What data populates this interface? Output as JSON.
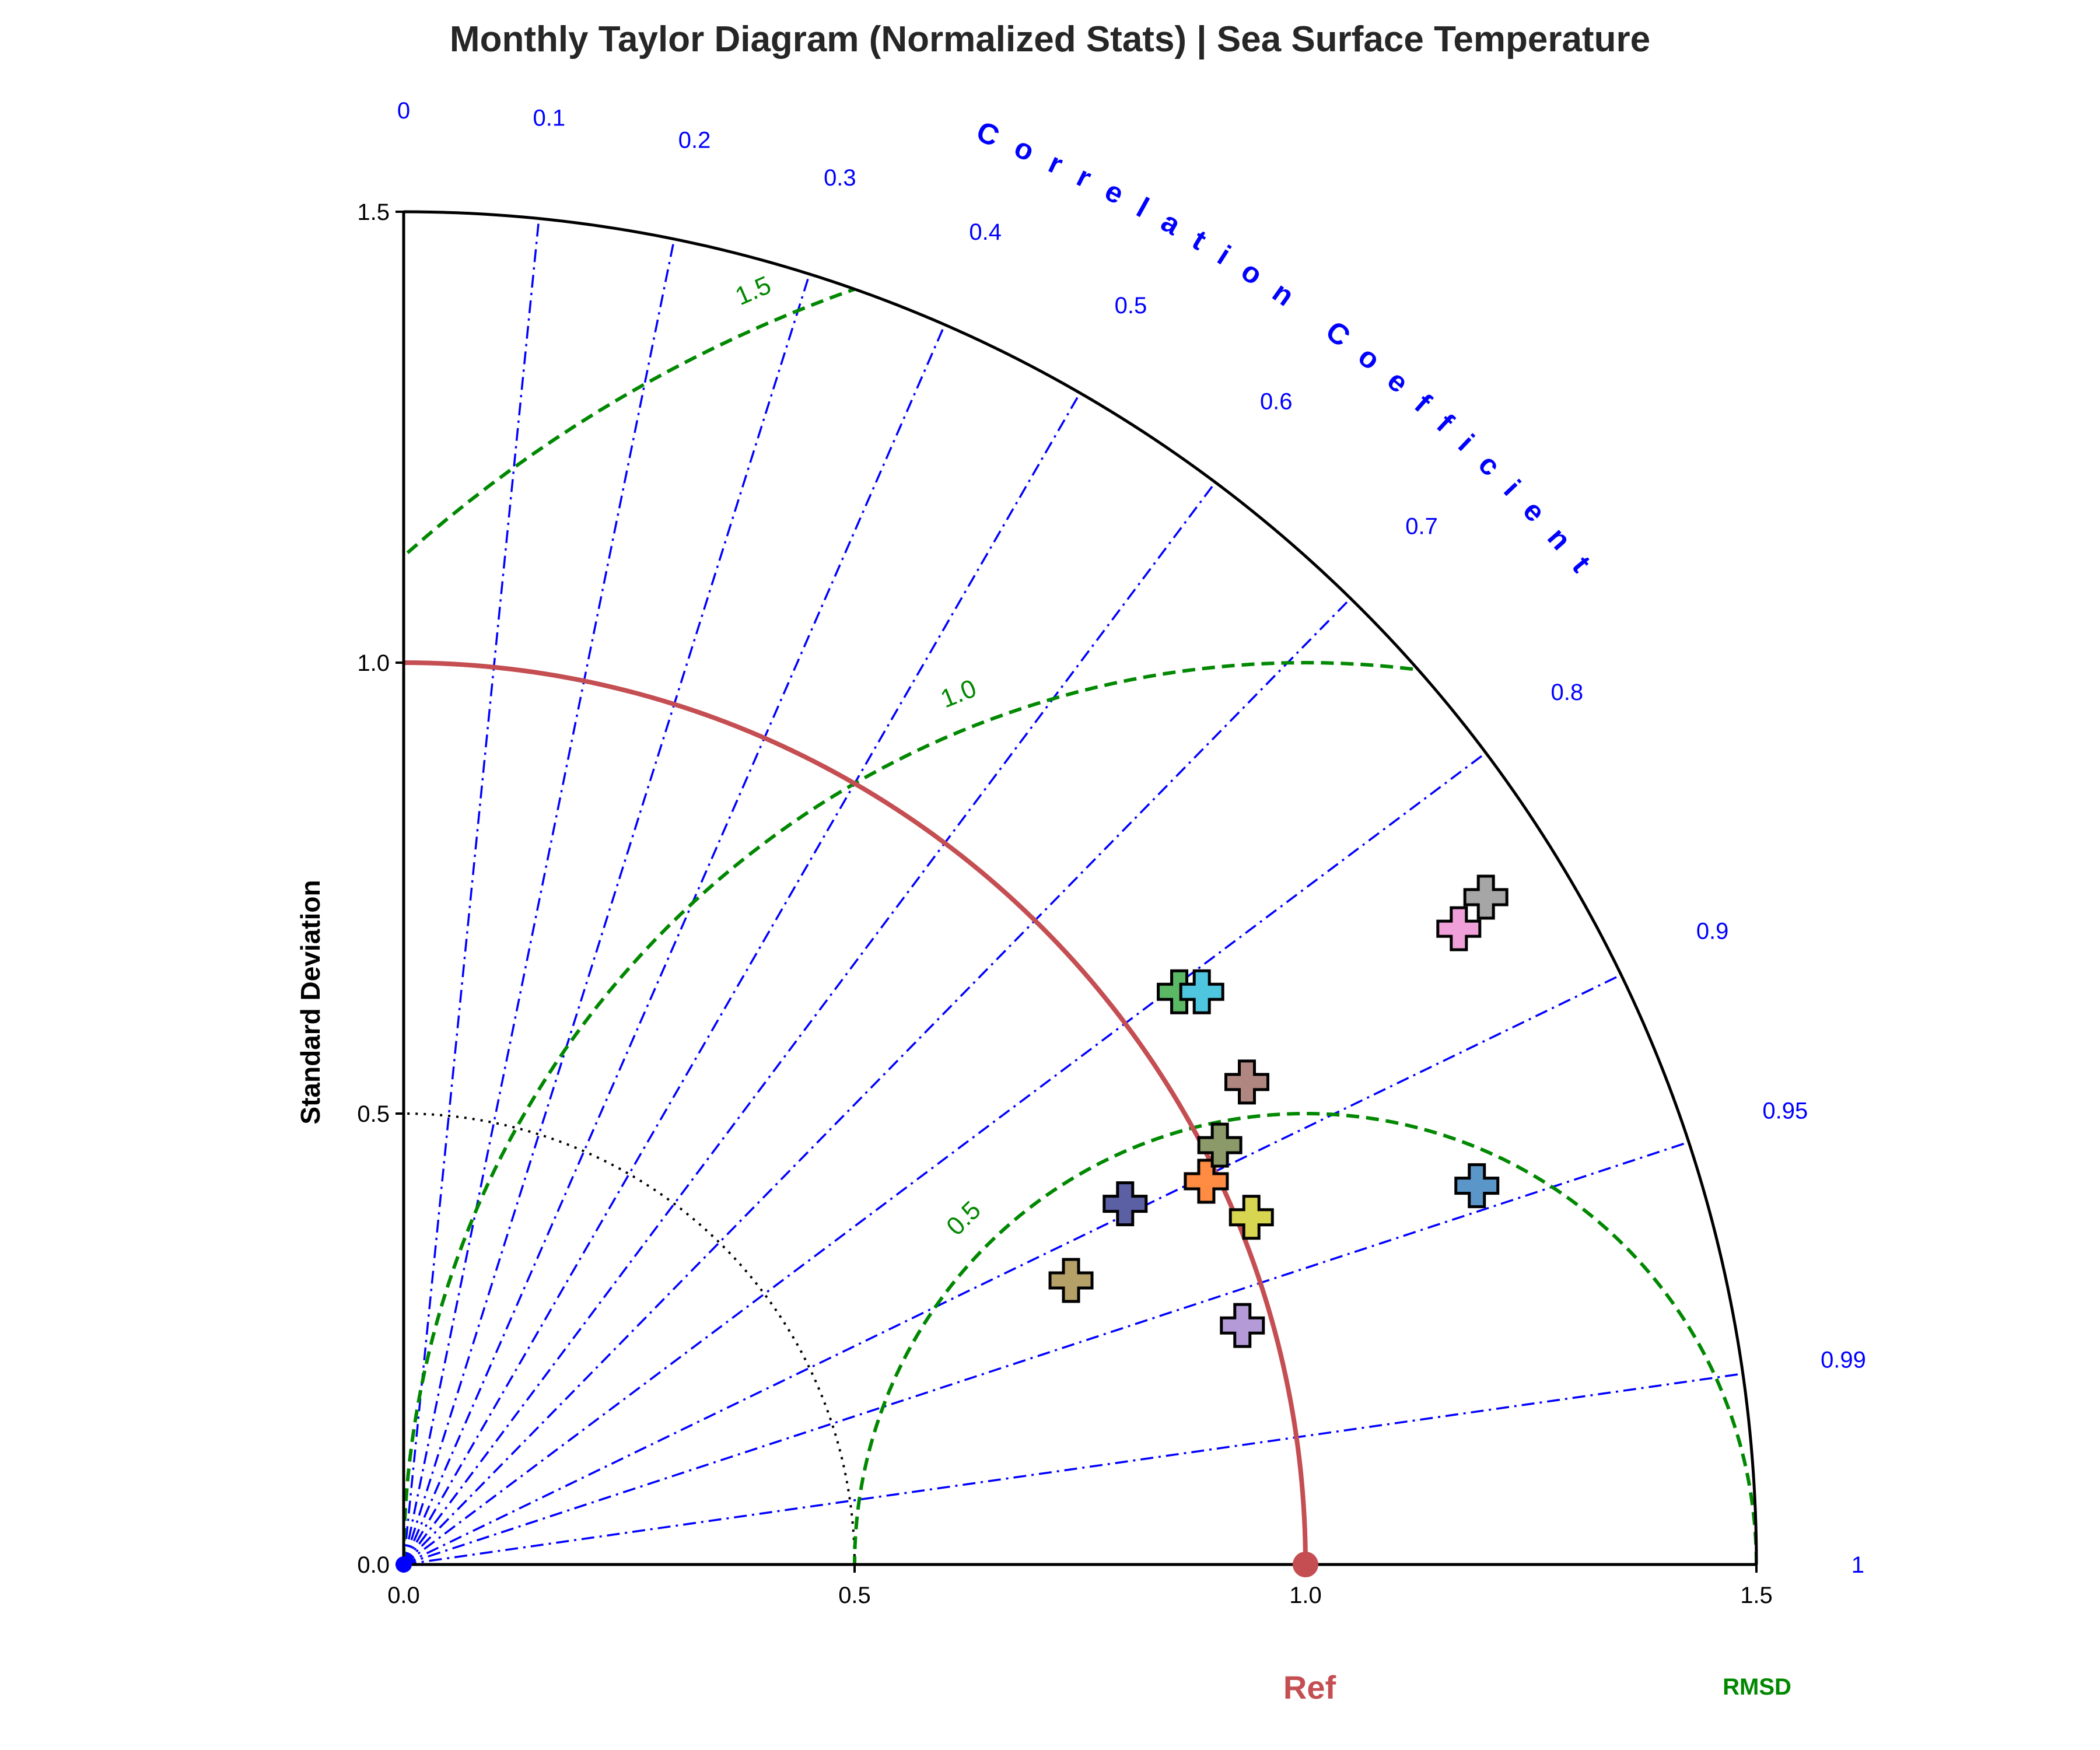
{
  "title": "Monthly Taylor Diagram (Normalized Stats) | Sea Surface Temperature",
  "chart_data": {
    "type": "scatter",
    "subtype": "taylor-diagram",
    "title": "Monthly Taylor Diagram (Normalized Stats) | Sea Surface Temperature",
    "ylabel": "Standard Deviation",
    "angular_label": "Correlation Coefficient",
    "std_max": 1.5,
    "std_ticks": [
      "0.0",
      "0.5",
      "1.0",
      "1.5"
    ],
    "correlation_ticks": [
      "0",
      "0.1",
      "0.2",
      "0.3",
      "0.4",
      "0.5",
      "0.6",
      "0.7",
      "0.8",
      "0.9",
      "0.95",
      "0.99",
      "1"
    ],
    "rmsd_contours": [
      "0.5",
      "1.0",
      "1.5"
    ],
    "rmsd_label": "RMSD",
    "reference": {
      "label": "Ref",
      "std": 1.0,
      "color": "#c44e52"
    },
    "points": [
      {
        "x": 0.74,
        "y": 0.315,
        "color": "#b5a068"
      },
      {
        "x": 0.8,
        "y": 0.4,
        "color": "#5b5fa3"
      },
      {
        "x": 0.86,
        "y": 0.635,
        "color": "#5bb865"
      },
      {
        "x": 0.885,
        "y": 0.635,
        "color": "#4ec6e0"
      },
      {
        "x": 0.89,
        "y": 0.425,
        "color": "#ff8c42"
      },
      {
        "x": 0.905,
        "y": 0.465,
        "color": "#8c9a6a"
      },
      {
        "x": 0.93,
        "y": 0.265,
        "color": "#b59ad8"
      },
      {
        "x": 0.935,
        "y": 0.535,
        "color": "#b08680"
      },
      {
        "x": 0.94,
        "y": 0.385,
        "color": "#d8d650"
      },
      {
        "x": 1.19,
        "y": 0.42,
        "color": "#5b96c9"
      },
      {
        "x": 1.17,
        "y": 0.705,
        "color": "#f0a0d8"
      },
      {
        "x": 1.2,
        "y": 0.74,
        "color": "#a6a6a6"
      }
    ]
  }
}
